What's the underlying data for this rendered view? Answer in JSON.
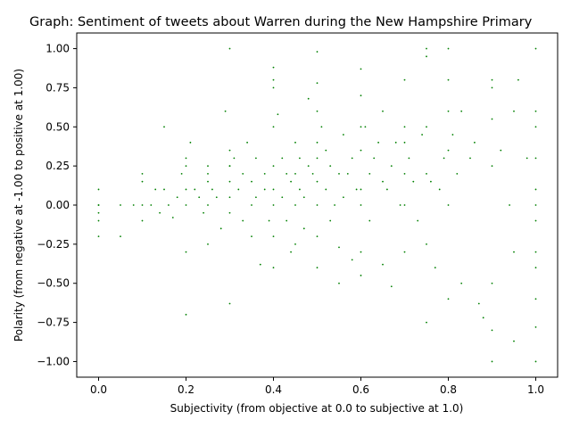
{
  "chart_data": {
    "type": "scatter",
    "title": "Graph: Sentiment of tweets about Warren during the New Hampshire Primary",
    "xlabel": "Subjectivity (from objective at 0.0 to subjective at 1.0)",
    "ylabel": "Polarity (from negative at -1.00 to positive at 1.00)",
    "xlim": [
      -0.05,
      1.05
    ],
    "ylim": [
      -1.1,
      1.1
    ],
    "x_ticks": [
      0.0,
      0.2,
      0.4,
      0.6,
      0.8,
      1.0
    ],
    "x_tick_labels": [
      "0.0",
      "0.2",
      "0.4",
      "0.6",
      "0.8",
      "1.0"
    ],
    "y_ticks": [
      -1.0,
      -0.75,
      -0.5,
      -0.25,
      0.0,
      0.25,
      0.5,
      0.75,
      1.0
    ],
    "y_tick_labels": [
      "−1.00",
      "−0.75",
      "−0.50",
      "−0.25",
      "0.00",
      "0.25",
      "0.50",
      "0.75",
      "1.00"
    ],
    "grid": false,
    "marker_color": "#008000",
    "series": [
      {
        "x": [
          0.0,
          0.0,
          0.0,
          0.0,
          0.0,
          0.0,
          0.05,
          0.05,
          0.08,
          0.1,
          0.1,
          0.1,
          0.1,
          0.12,
          0.13,
          0.14,
          0.15,
          0.15,
          0.16,
          0.17,
          0.18,
          0.19,
          0.2,
          0.2,
          0.2,
          0.2,
          0.2,
          0.2,
          0.21,
          0.22,
          0.23,
          0.24,
          0.25,
          0.25,
          0.25,
          0.25,
          0.25,
          0.26,
          0.27,
          0.28,
          0.29,
          0.3,
          0.3,
          0.3,
          0.3,
          0.3,
          0.3,
          0.3,
          0.3,
          0.31,
          0.32,
          0.33,
          0.33,
          0.34,
          0.35,
          0.35,
          0.35,
          0.36,
          0.36,
          0.37,
          0.38,
          0.38,
          0.39,
          0.4,
          0.4,
          0.4,
          0.4,
          0.4,
          0.4,
          0.4,
          0.4,
          0.4,
          0.41,
          0.42,
          0.42,
          0.43,
          0.43,
          0.44,
          0.44,
          0.45,
          0.45,
          0.45,
          0.45,
          0.46,
          0.46,
          0.47,
          0.47,
          0.48,
          0.48,
          0.49,
          0.5,
          0.5,
          0.5,
          0.5,
          0.5,
          0.5,
          0.5,
          0.5,
          0.5,
          0.51,
          0.52,
          0.52,
          0.53,
          0.53,
          0.54,
          0.55,
          0.55,
          0.55,
          0.56,
          0.56,
          0.57,
          0.58,
          0.58,
          0.59,
          0.6,
          0.6,
          0.6,
          0.6,
          0.6,
          0.6,
          0.6,
          0.6,
          0.61,
          0.62,
          0.62,
          0.63,
          0.64,
          0.65,
          0.65,
          0.65,
          0.66,
          0.67,
          0.67,
          0.68,
          0.69,
          0.7,
          0.7,
          0.7,
          0.7,
          0.7,
          0.7,
          0.71,
          0.72,
          0.73,
          0.74,
          0.75,
          0.75,
          0.75,
          0.75,
          0.75,
          0.75,
          0.76,
          0.77,
          0.78,
          0.79,
          0.8,
          0.8,
          0.8,
          0.8,
          0.8,
          0.8,
          0.81,
          0.82,
          0.83,
          0.83,
          0.85,
          0.86,
          0.87,
          0.88,
          0.9,
          0.9,
          0.9,
          0.9,
          0.9,
          0.9,
          0.9,
          0.92,
          0.94,
          0.95,
          0.95,
          0.95,
          0.96,
          0.98,
          1.0,
          1.0,
          1.0,
          1.0,
          1.0,
          1.0,
          1.0,
          1.0,
          1.0,
          1.0,
          1.0,
          1.0
        ],
        "y": [
          0.1,
          0.0,
          -0.05,
          -0.1,
          -0.2,
          0.0,
          0.0,
          -0.2,
          0.0,
          0.2,
          0.15,
          0.0,
          -0.1,
          0.0,
          0.1,
          -0.05,
          0.5,
          0.1,
          0.0,
          -0.08,
          0.05,
          0.2,
          0.3,
          0.25,
          0.1,
          0.0,
          -0.3,
          -0.7,
          0.4,
          0.1,
          0.05,
          -0.05,
          0.25,
          0.2,
          0.15,
          0.0,
          -0.25,
          0.1,
          0.05,
          -0.15,
          0.6,
          1.0,
          0.35,
          0.25,
          0.15,
          0.05,
          -0.05,
          -0.63,
          0.25,
          0.3,
          0.1,
          -0.1,
          0.2,
          0.4,
          0.15,
          0.0,
          -0.2,
          0.3,
          0.05,
          -0.38,
          0.2,
          0.1,
          -0.1,
          0.88,
          0.8,
          0.75,
          0.5,
          0.25,
          0.1,
          0.0,
          -0.2,
          -0.4,
          0.58,
          0.3,
          0.05,
          0.2,
          -0.1,
          0.15,
          -0.3,
          0.4,
          0.2,
          0.0,
          -0.25,
          0.3,
          0.1,
          0.05,
          -0.15,
          0.25,
          0.68,
          0.2,
          0.98,
          0.78,
          0.6,
          0.4,
          0.3,
          0.15,
          0.0,
          -0.2,
          -0.4,
          0.5,
          0.35,
          0.1,
          0.25,
          -0.1,
          0.0,
          0.2,
          -0.27,
          -0.5,
          0.45,
          0.05,
          0.2,
          -0.35,
          0.3,
          0.1,
          0.87,
          0.7,
          0.5,
          0.35,
          0.1,
          0.0,
          -0.3,
          -0.45,
          0.5,
          0.2,
          -0.1,
          0.3,
          0.4,
          0.6,
          0.15,
          -0.38,
          0.1,
          0.25,
          -0.52,
          0.4,
          0.0,
          0.8,
          0.5,
          0.4,
          0.2,
          0.0,
          -0.3,
          0.3,
          0.15,
          -0.1,
          0.45,
          1.0,
          0.95,
          0.5,
          0.2,
          -0.25,
          -0.75,
          0.15,
          -0.4,
          0.1,
          0.3,
          1.0,
          0.8,
          0.6,
          0.35,
          0.0,
          -0.6,
          0.45,
          0.2,
          0.6,
          -0.5,
          0.3,
          0.4,
          -0.63,
          -0.72,
          0.8,
          0.75,
          0.55,
          0.25,
          -0.5,
          -0.8,
          -1.0,
          0.35,
          0.0,
          0.6,
          -0.3,
          -0.87,
          0.8,
          0.3,
          1.0,
          0.6,
          0.5,
          0.3,
          0.1,
          0.0,
          -0.1,
          -0.3,
          -0.4,
          -0.6,
          -0.78,
          -1.0
        ]
      }
    ]
  }
}
